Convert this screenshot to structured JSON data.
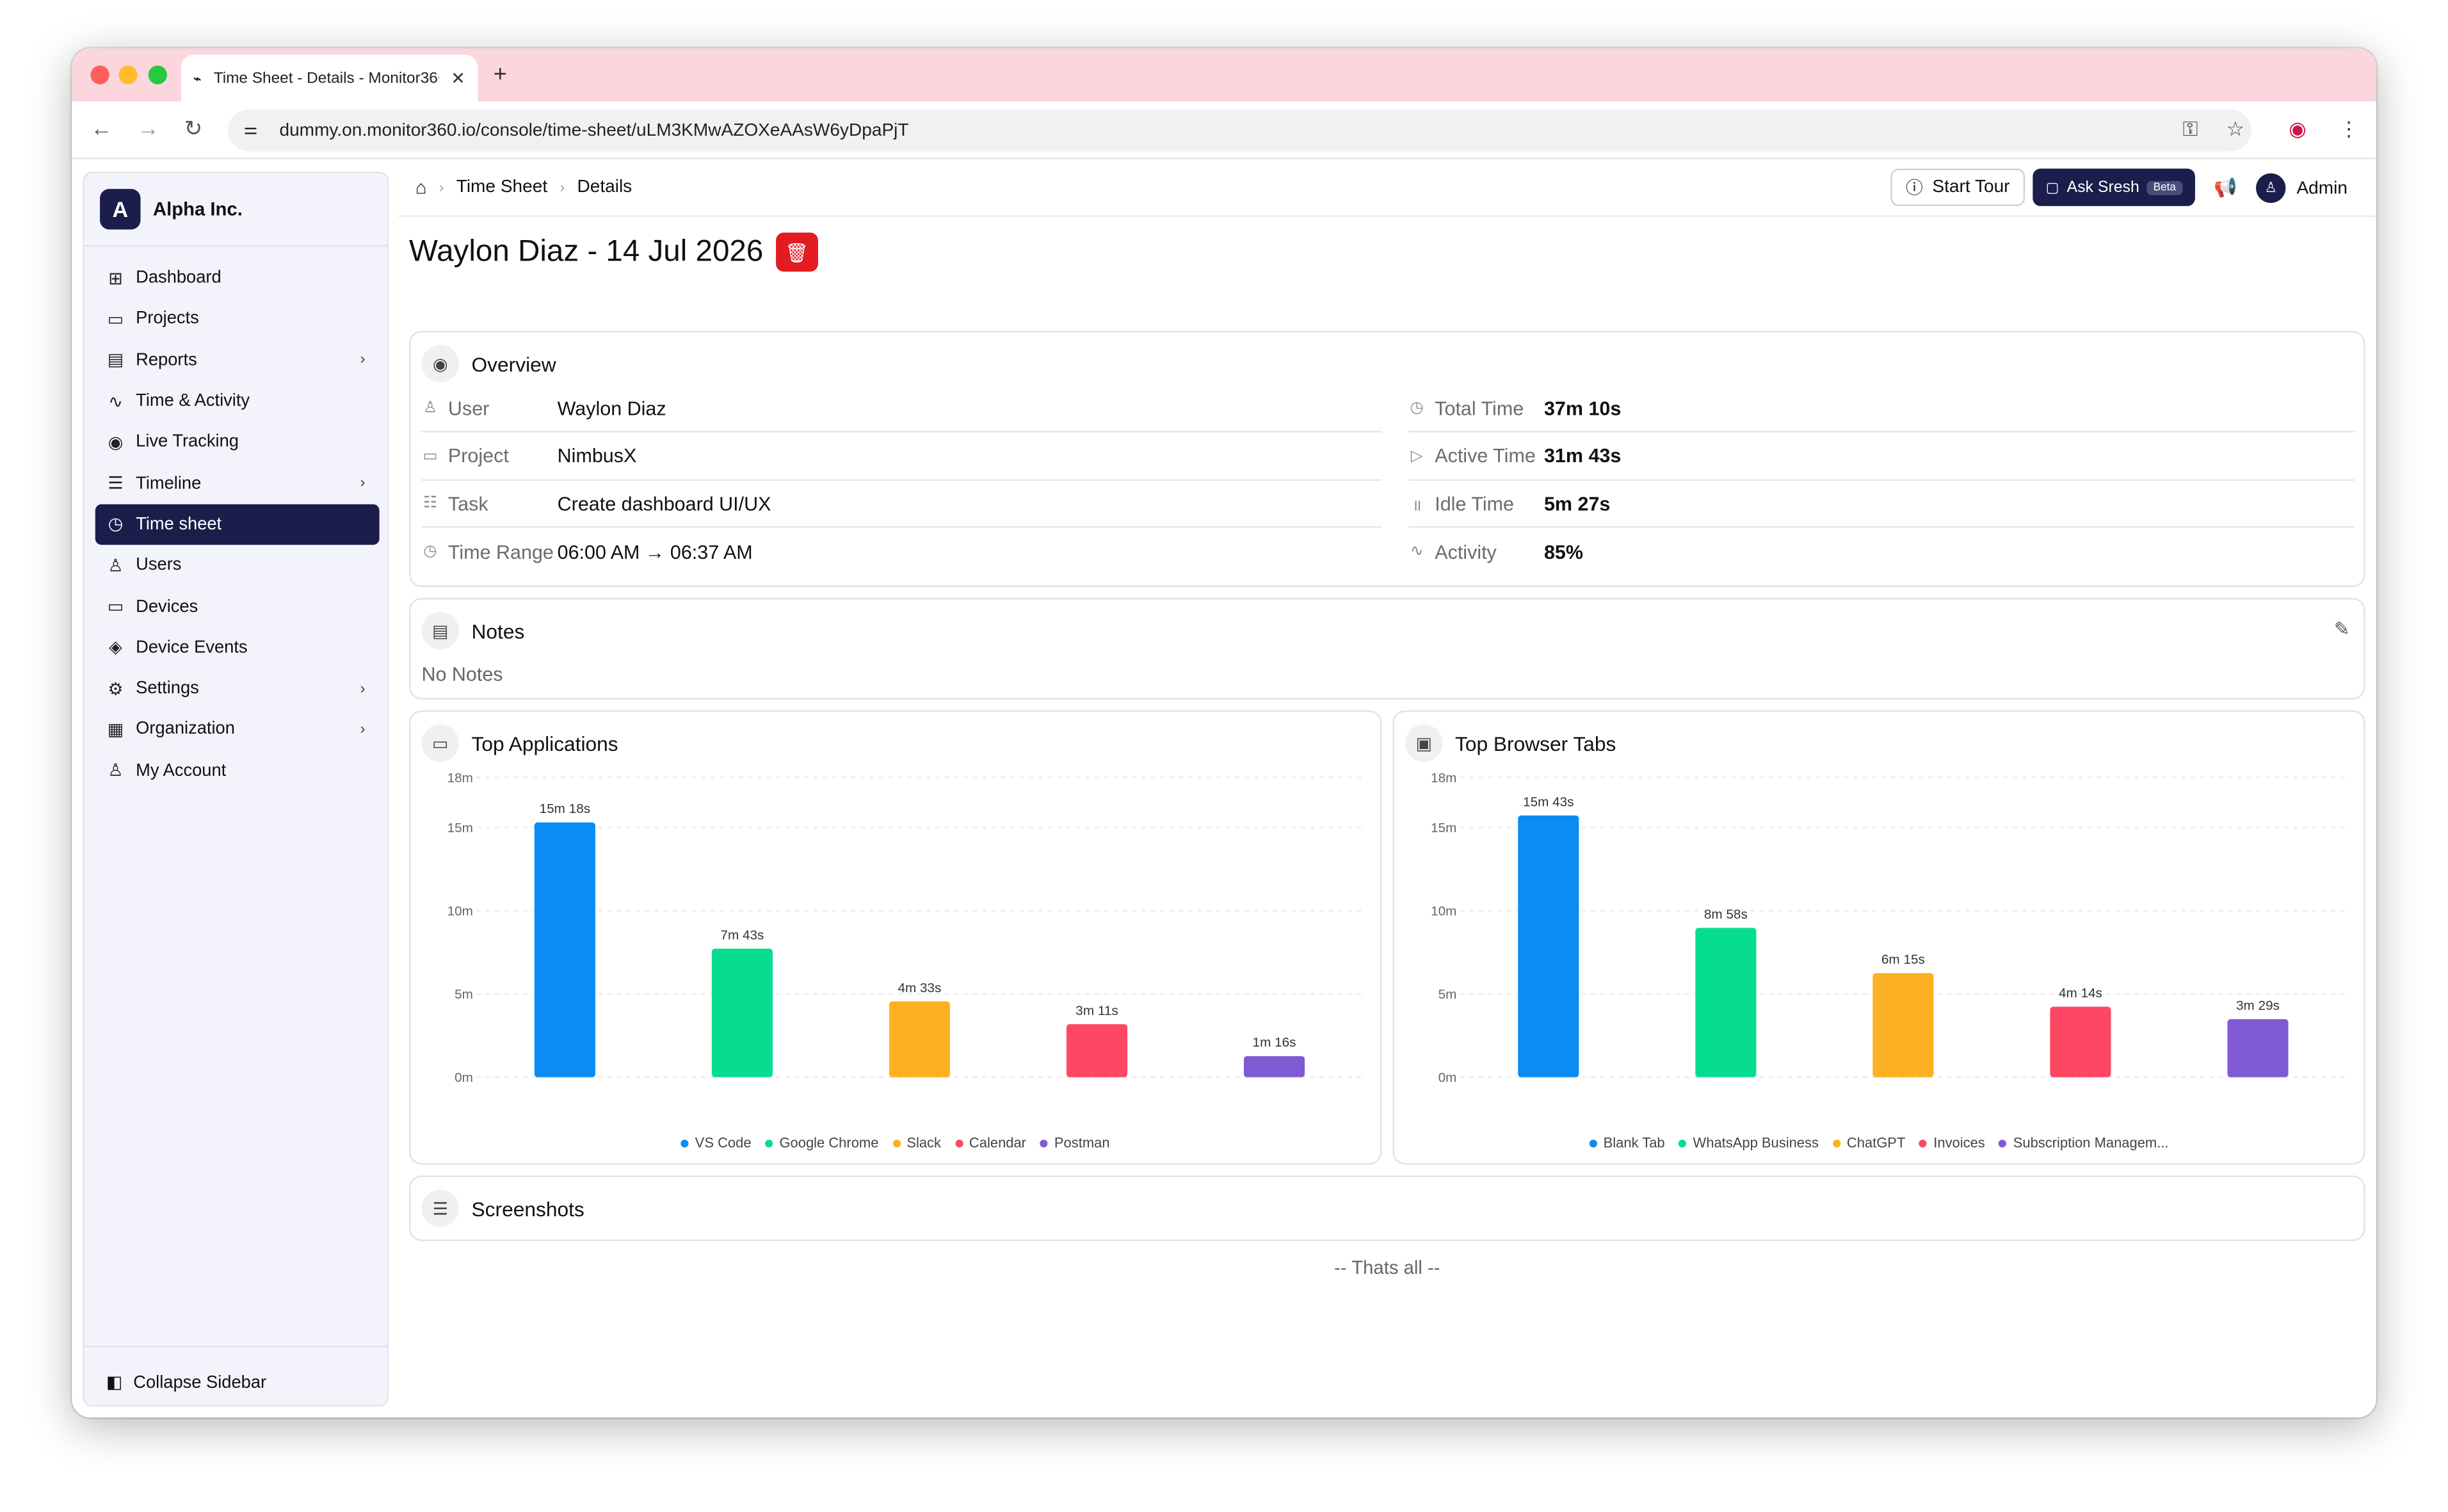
{
  "browser": {
    "tab_title": "Time Sheet - Details - Monitor360",
    "url": "dummy.on.monitor360.io/console/time-sheet/uLM3KMwAZOXeAAsW6yDpaPjT"
  },
  "sidebar": {
    "org_initial": "A",
    "org_name": "Alpha Inc.",
    "items": [
      {
        "label": "Dashboard",
        "icon": "grid-icon",
        "glyph": "⊞",
        "arrow": false
      },
      {
        "label": "Projects",
        "icon": "folder-icon",
        "glyph": "▭",
        "arrow": false
      },
      {
        "label": "Reports",
        "icon": "report-icon",
        "glyph": "▤",
        "arrow": true
      },
      {
        "label": "Time & Activity",
        "icon": "activity-icon",
        "glyph": "∿",
        "arrow": false
      },
      {
        "label": "Live Tracking",
        "icon": "broadcast-icon",
        "glyph": "◉",
        "arrow": false
      },
      {
        "label": "Timeline",
        "icon": "timeline-icon",
        "glyph": "☰",
        "arrow": true
      },
      {
        "label": "Time sheet",
        "icon": "stopwatch-icon",
        "glyph": "◷",
        "arrow": false,
        "active": true
      },
      {
        "label": "Users",
        "icon": "users-icon",
        "glyph": "♙",
        "arrow": false
      },
      {
        "label": "Devices",
        "icon": "monitor-icon",
        "glyph": "▭",
        "arrow": false
      },
      {
        "label": "Device Events",
        "icon": "shield-icon",
        "glyph": "◈",
        "arrow": false
      },
      {
        "label": "Settings",
        "icon": "gear-icon",
        "glyph": "⚙",
        "arrow": true
      },
      {
        "label": "Organization",
        "icon": "building-icon",
        "glyph": "▦",
        "arrow": true
      },
      {
        "label": "My Account",
        "icon": "user-icon",
        "glyph": "♙",
        "arrow": false
      }
    ],
    "collapse_label": "Collapse Sidebar"
  },
  "header": {
    "breadcrumb": [
      "Time Sheet",
      "Details"
    ],
    "start_tour": "Start Tour",
    "ask": "Ask Sresh",
    "beta": "Beta",
    "user": "Admin"
  },
  "page": {
    "title": "Waylon Diaz - 14 Jul 2026"
  },
  "overview": {
    "title": "Overview",
    "left": [
      {
        "key": "User",
        "value": "Waylon Diaz",
        "icon": "user-icon",
        "glyph": "♙"
      },
      {
        "key": "Project",
        "value": "NimbusX",
        "icon": "folder-icon",
        "glyph": "▭"
      },
      {
        "key": "Task",
        "value": "Create dashboard UI/UX",
        "icon": "checklist-icon",
        "glyph": "☷"
      },
      {
        "key": "Time Range",
        "value": "06:00 AM → 06:37 AM",
        "icon": "clock-icon",
        "glyph": "◷"
      }
    ],
    "right": [
      {
        "key": "Total Time",
        "value": "37m 10s",
        "icon": "clock-icon",
        "glyph": "◷"
      },
      {
        "key": "Active Time",
        "value": "31m 43s",
        "icon": "play-icon",
        "glyph": "▷"
      },
      {
        "key": "Idle Time",
        "value": "5m 27s",
        "icon": "pause-icon",
        "glyph": "॥"
      },
      {
        "key": "Activity",
        "value": "85%",
        "icon": "activity-icon",
        "glyph": "∿"
      }
    ]
  },
  "notes": {
    "title": "Notes",
    "empty": "No Notes"
  },
  "chart_data": [
    {
      "type": "bar",
      "title": "Top Applications",
      "categories": [
        "VS Code",
        "Google Chrome",
        "Slack",
        "Calendar",
        "Postman"
      ],
      "values": [
        15.3,
        7.717,
        4.55,
        3.183,
        1.267
      ],
      "data_labels": [
        "15m 18s",
        "7m 43s",
        "4m 33s",
        "3m 11s",
        "1m 16s"
      ],
      "colors": [
        "#0a8cf3",
        "#07dd8f",
        "#fdb122",
        "#fd4763",
        "#7f5ad2"
      ],
      "yticks": [
        "18m",
        "15m",
        "10m",
        "5m",
        "0m"
      ],
      "ytick_values": [
        18,
        15,
        10,
        5,
        0
      ],
      "ylim": [
        0,
        18
      ],
      "legend": "bottom",
      "grid": true
    },
    {
      "type": "bar",
      "title": "Top Browser Tabs",
      "categories": [
        "Blank Tab",
        "WhatsApp Business",
        "ChatGPT",
        "Invoices",
        "Subscription Managem..."
      ],
      "values": [
        15.717,
        8.967,
        6.25,
        4.233,
        3.483
      ],
      "data_labels": [
        "15m 43s",
        "8m 58s",
        "6m 15s",
        "4m 14s",
        "3m 29s"
      ],
      "colors": [
        "#0a8cf3",
        "#07dd8f",
        "#fdb122",
        "#fd4763",
        "#7f5ad2"
      ],
      "yticks": [
        "18m",
        "15m",
        "10m",
        "5m",
        "0m"
      ],
      "ytick_values": [
        18,
        15,
        10,
        5,
        0
      ],
      "ylim": [
        0,
        18
      ],
      "legend": "bottom",
      "grid": true
    }
  ],
  "screenshots": {
    "title": "Screenshots",
    "footer": "-- Thats all --"
  }
}
